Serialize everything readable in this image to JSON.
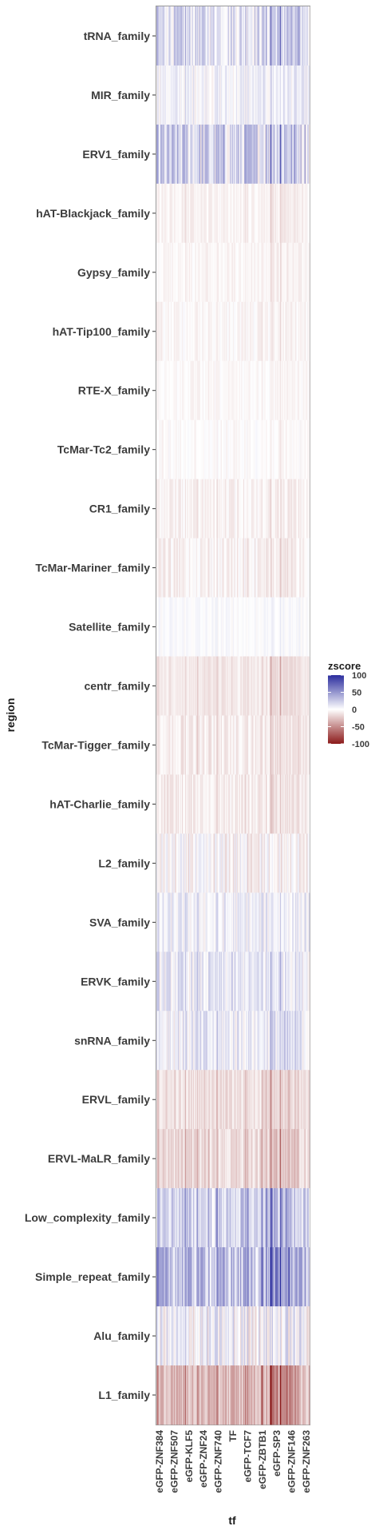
{
  "chart_data": {
    "type": "heatmap",
    "xlabel": "tf",
    "ylabel": "region",
    "rows": [
      {
        "label": "tRNA_family",
        "mean": 18,
        "spread": 22
      },
      {
        "label": "MIR_family",
        "mean": 6,
        "spread": 14
      },
      {
        "label": "ERV1_family",
        "mean": 22,
        "spread": 30
      },
      {
        "label": "hAT-Blackjack_family",
        "mean": -6,
        "spread": 6
      },
      {
        "label": "Gypsy_family",
        "mean": -5,
        "spread": 6
      },
      {
        "label": "hAT-Tip100_family",
        "mean": -4,
        "spread": 7
      },
      {
        "label": "RTE-X_family",
        "mean": -3,
        "spread": 5
      },
      {
        "label": "TcMar-Tc2_family",
        "mean": -2,
        "spread": 6
      },
      {
        "label": "CR1_family",
        "mean": -6,
        "spread": 8
      },
      {
        "label": "TcMar-Mariner_family",
        "mean": -6,
        "spread": 10
      },
      {
        "label": "Satellite_family",
        "mean": 2,
        "spread": 6
      },
      {
        "label": "centr_family",
        "mean": -12,
        "spread": 6
      },
      {
        "label": "TcMar-Tigger_family",
        "mean": -10,
        "spread": 9
      },
      {
        "label": "hAT-Charlie_family",
        "mean": -10,
        "spread": 9
      },
      {
        "label": "L2_family",
        "mean": -4,
        "spread": 18
      },
      {
        "label": "SVA_family",
        "mean": 6,
        "spread": 16
      },
      {
        "label": "ERVK_family",
        "mean": 10,
        "spread": 18
      },
      {
        "label": "snRNA_family",
        "mean": 10,
        "spread": 20
      },
      {
        "label": "ERVL_family",
        "mean": -16,
        "spread": 10
      },
      {
        "label": "ERVL-MaLR_family",
        "mean": -20,
        "spread": 12
      },
      {
        "label": "Low_complexity_family",
        "mean": 26,
        "spread": 22
      },
      {
        "label": "Simple_repeat_family",
        "mean": 36,
        "spread": 26
      },
      {
        "label": "Alu_family",
        "mean": 4,
        "spread": 26
      },
      {
        "label": "L1_family",
        "mean": -36,
        "spread": 18
      }
    ],
    "n_columns": 150,
    "value_range": [
      -100,
      100
    ],
    "colorscale": {
      "low": "#8b1a1a",
      "mid": "#ffffff",
      "high": "#2b2d9e"
    },
    "legend": {
      "title": "zscore",
      "ticks": [
        100,
        50,
        0,
        -50,
        -100
      ]
    },
    "xtick_labels": [
      "eGFP-ZNF384",
      "eGFP-ZNF507",
      "eGFP-KLF5",
      "eGFP-ZNF24",
      "eGFP-ZNF740",
      "TF",
      "eGFP-TCF7",
      "eGFP-ZBTB1",
      "eGFP-SP3",
      "eGFP-ZNF146",
      "eGFP-ZNF263"
    ]
  }
}
